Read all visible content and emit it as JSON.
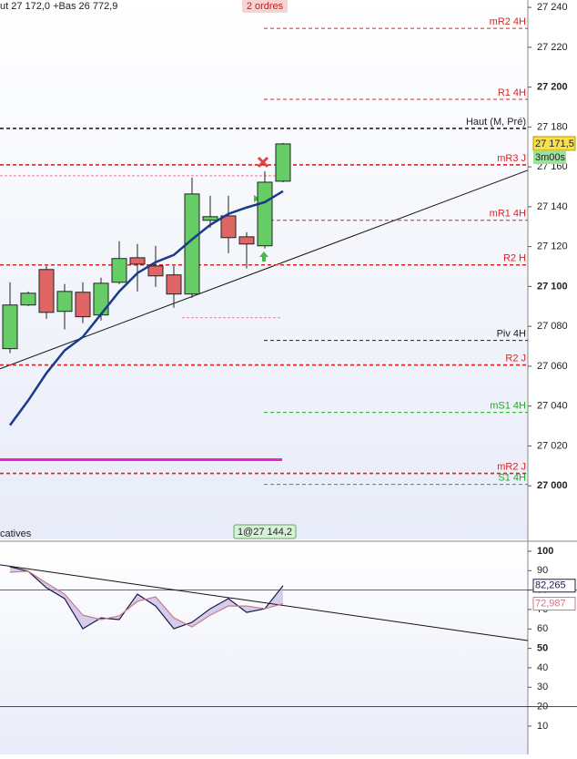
{
  "chart_data": [
    {
      "type": "candlestick",
      "header_text": "ut 27 172,0 +Bas 26 772,9",
      "orders_badge": "2 ordres",
      "categories": [
        null,
        null,
        null,
        null,
        null,
        null,
        null,
        null,
        null,
        null,
        null,
        null,
        null,
        null,
        null,
        null
      ],
      "open": [
        27068.8,
        27090.7,
        27108.5,
        27087.5,
        27097.1,
        27085.7,
        27102.1,
        27114.4,
        27110.3,
        27105.8,
        27096.2,
        27133.2,
        27135.4,
        27124.9,
        27120.4,
        27152.8
      ],
      "high": [
        27102.1,
        27097.5,
        27110.3,
        27101.2,
        27102.1,
        27104.4,
        27122.7,
        27121.3,
        27120.4,
        27110.3,
        27154.6,
        27145.5,
        27145.5,
        27127.2,
        27157.8,
        27172.0
      ],
      "low": [
        27066.5,
        27090.2,
        27083.8,
        27078.4,
        27081.6,
        27082.9,
        27101.2,
        27097.5,
        27099.8,
        27089.3,
        27094.3,
        27129.5,
        27116.7,
        27109.0,
        27119.0,
        27152.3
      ],
      "close": [
        27090.7,
        27096.6,
        27087.0,
        27097.5,
        27084.8,
        27101.6,
        27114.0,
        27111.2,
        27105.3,
        27096.2,
        27146.4,
        27135.0,
        27124.5,
        27121.3,
        27152.3,
        27171.5
      ],
      "up_color": "#66cc66",
      "down_color": "#e06666",
      "moving_average": {
        "color": "#1a3a8a",
        "values": [
          27030.4,
          27042.8,
          27056.5,
          27067.9,
          27074.7,
          27086.1,
          27097.5,
          27106.7,
          27112.2,
          27115.8,
          27123.6,
          27130.9,
          27136.4,
          27139.6,
          27142.3,
          27147.8
        ]
      },
      "trendline": [
        27058.7,
        27158.3
      ],
      "ylim": [
        26979.5,
        27243.7
      ],
      "yticks": [
        {
          "value": 27240,
          "label": "27 240"
        },
        {
          "value": 27220,
          "label": "27 220"
        },
        {
          "value": 27200,
          "label": "27 200"
        },
        {
          "value": 27180,
          "label": "27 180"
        },
        {
          "value": 27160,
          "label": "27 160"
        },
        {
          "value": 27140,
          "label": "27 140"
        },
        {
          "value": 27120,
          "label": "27 120"
        },
        {
          "value": 27100,
          "label": "27 100"
        },
        {
          "value": 27080,
          "label": "27 080"
        },
        {
          "value": 27060,
          "label": "27 060"
        },
        {
          "value": 27040,
          "label": "27 040"
        },
        {
          "value": 27020,
          "label": "27 020"
        },
        {
          "value": 27000,
          "label": "27 000"
        }
      ],
      "levels": [
        {
          "label": "mR2 4H",
          "value": 27229.5,
          "color": "#dd2222"
        },
        {
          "label": "R1 4H",
          "value": 27193.9,
          "color": "#dd2222"
        },
        {
          "label": "Haut (M, Pré)",
          "value": 27179.3,
          "color": "#222222"
        },
        {
          "label": "mR3 J",
          "value": 27161.0,
          "color": "#dd2222"
        },
        {
          "label": "mR1 4H",
          "value": 27133.2,
          "color": "#dd2222"
        },
        {
          "label": "R2 H",
          "value": 27110.8,
          "color": "#dd2222"
        },
        {
          "label": "Piv 4H",
          "value": 27072.9,
          "color": "#222222"
        },
        {
          "label": "R2 J",
          "value": 27060.6,
          "color": "#dd2222"
        },
        {
          "label": "mS1 4H",
          "value": 27036.8,
          "color": "#22aa22"
        },
        {
          "label": "mR2 J",
          "value": 27006.2,
          "color": "#dd2222"
        },
        {
          "label": "S1 4H",
          "value": 27000.7,
          "color": "#22aa22"
        }
      ],
      "short_levels": [
        27155.5,
        27084.3
      ],
      "support_line": {
        "value": 27013.1,
        "color": "#ee22cc"
      },
      "last_price": {
        "value": 27171.5,
        "label": "27 171,5"
      },
      "countdown": "3m00s"
    },
    {
      "type": "line",
      "title": "catives",
      "order_label": "1@27 144,2",
      "categories": [
        null,
        null,
        null,
        null,
        null,
        null,
        null,
        null,
        null,
        null,
        null,
        null,
        null,
        null,
        null,
        null
      ],
      "series": [
        {
          "color": "#1a1a4a",
          "values": [
            92.0,
            89.7,
            81.2,
            75.6,
            60.1,
            65.7,
            64.8,
            77.9,
            71.8,
            60.1,
            63.4,
            70.4,
            75.6,
            68.5,
            70.4,
            82.265
          ],
          "last_value_label": "82,265"
        },
        {
          "color": "#cc7788",
          "values": [
            89.2,
            89.7,
            83.6,
            77.9,
            67.1,
            64.8,
            66.7,
            74.2,
            76.5,
            65.7,
            61.0,
            67.1,
            71.8,
            71.8,
            70.4,
            72.987
          ],
          "last_value_label": "72,987"
        }
      ],
      "trendline": [
        93.0,
        54.0
      ],
      "hlines": [
        80,
        20
      ],
      "ylim": [
        -4.6,
        104.2
      ],
      "yticks": [
        100,
        90,
        80,
        70,
        60,
        50,
        40,
        30,
        20,
        10
      ]
    }
  ]
}
